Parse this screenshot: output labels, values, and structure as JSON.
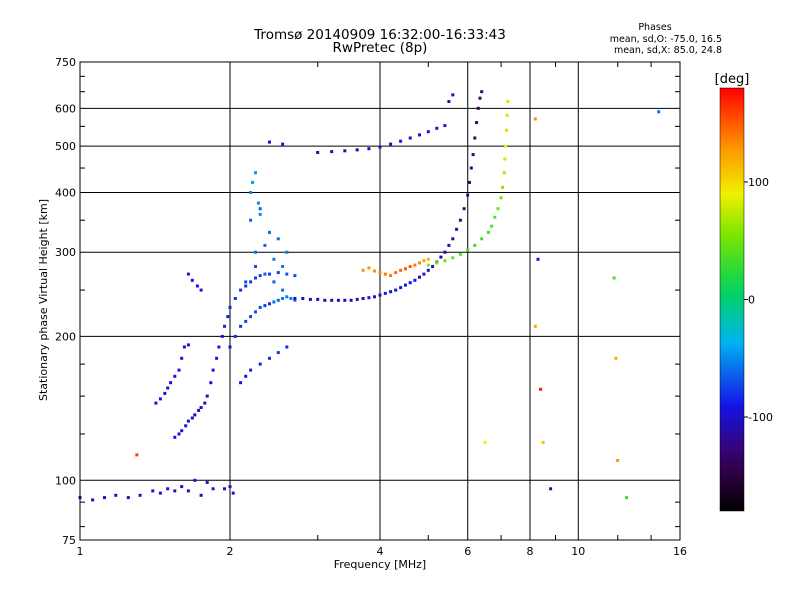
{
  "chart_data": {
    "type": "scatter",
    "title": "Tromsø 20140909 16:32:00-16:33:43",
    "subtitle": "RwPretec (8p)",
    "xlabel": "Frequency [MHz]",
    "ylabel": "Stationary phase Virtual Height [km]",
    "x_scale": "log",
    "y_scale": "log",
    "xlim": [
      1,
      16
    ],
    "ylim": [
      75,
      750
    ],
    "x_ticks": [
      1,
      2,
      4,
      6,
      8,
      10,
      16
    ],
    "y_ticks": [
      75,
      100,
      200,
      300,
      400,
      500,
      600,
      750
    ],
    "grid": true,
    "stats": {
      "title": "Phases",
      "line_o": "mean, sd,O:  -75.0, 16.5",
      "line_x": "mean, sd,X:   85.0, 24.8"
    },
    "colorbar": {
      "label": "[deg]",
      "range": [
        -180,
        180
      ],
      "ticks": [
        100,
        0,
        -100
      ],
      "position": "right"
    },
    "series": [
      {
        "x": [
          1.0,
          1.06,
          1.12,
          1.18,
          1.25,
          1.32,
          1.4,
          1.45,
          1.5,
          1.55,
          1.6,
          1.65,
          1.7,
          1.75,
          1.8,
          1.85,
          1.95,
          2.0,
          2.03
        ],
        "y": [
          92,
          91,
          92,
          93,
          92,
          93,
          95,
          94,
          96,
          95,
          97,
          95,
          100,
          93,
          99,
          96,
          96,
          97,
          94
        ],
        "phase": [
          -100,
          -100,
          -100,
          -100,
          -100,
          -100,
          -100,
          -100,
          -100,
          -100,
          -100,
          -105,
          -100,
          -110,
          -100,
          -100,
          -100,
          -100,
          -100
        ]
      },
      {
        "x": [
          1.55,
          1.58,
          1.6,
          1.63,
          1.65,
          1.68,
          1.7,
          1.73,
          1.75,
          1.78,
          1.8,
          1.83,
          1.85,
          1.88,
          1.9,
          1.93,
          1.95,
          1.98,
          2.0,
          2.05,
          2.1,
          2.15,
          2.2,
          2.25,
          2.3,
          2.4,
          2.5,
          2.6,
          2.7
        ],
        "y": [
          123,
          125,
          127,
          130,
          133,
          135,
          137,
          140,
          142,
          145,
          150,
          160,
          170,
          180,
          190,
          200,
          210,
          220,
          230,
          240,
          250,
          255,
          260,
          265,
          268,
          270,
          272,
          270,
          268
        ],
        "phase": [
          -90,
          -90,
          -95,
          -95,
          -95,
          -100,
          -100,
          -100,
          -100,
          -100,
          -100,
          -95,
          -95,
          -90,
          -90,
          -90,
          -85,
          -85,
          -85,
          -80,
          -80,
          -80,
          -75,
          -75,
          -75,
          -75,
          -75,
          -70,
          -70
        ]
      },
      {
        "x": [
          1.42,
          1.45,
          1.48,
          1.5,
          1.52,
          1.55,
          1.58,
          1.6,
          1.62,
          1.65
        ],
        "y": [
          145,
          148,
          152,
          156,
          160,
          165,
          170,
          180,
          190,
          192
        ],
        "phase": [
          -95,
          -95,
          -95,
          -95,
          -95,
          -95,
          -95,
          -95,
          -95,
          -95
        ]
      },
      {
        "x": [
          1.65,
          1.68,
          1.72,
          1.75
        ],
        "y": [
          270,
          262,
          255,
          250
        ],
        "phase": [
          -90,
          -90,
          -90,
          -90
        ]
      },
      {
        "x": [
          2.0,
          2.05,
          2.1,
          2.15,
          2.2,
          2.25,
          2.3,
          2.35,
          2.4,
          2.45,
          2.5,
          2.55,
          2.6,
          2.65,
          2.7,
          2.1,
          2.15,
          2.2,
          2.3,
          2.4,
          2.5,
          2.6,
          2.25,
          2.35,
          2.45,
          2.55,
          2.2,
          2.3,
          2.4,
          2.5,
          2.6,
          2.15,
          2.25,
          2.35,
          2.45,
          2.55
        ],
        "y": [
          190,
          200,
          210,
          215,
          220,
          225,
          230,
          232,
          234,
          236,
          238,
          240,
          242,
          240,
          238,
          160,
          165,
          170,
          175,
          180,
          185,
          190,
          300,
          310,
          290,
          280,
          350,
          370,
          330,
          320,
          300,
          260,
          280,
          270,
          260,
          250
        ],
        "phase": [
          -90,
          -80,
          -80,
          -75,
          -75,
          -70,
          -70,
          -75,
          -80,
          -60,
          -60,
          -55,
          -55,
          -55,
          -60,
          -90,
          -90,
          -85,
          -85,
          -80,
          -80,
          -80,
          -60,
          -60,
          -55,
          -55,
          -65,
          -65,
          -60,
          -60,
          -55,
          -70,
          -70,
          -65,
          -65,
          -60
        ]
      },
      {
        "x": [
          2.2,
          2.22,
          2.25,
          2.28,
          2.3
        ],
        "y": [
          400,
          420,
          440,
          380,
          360
        ],
        "phase": [
          -50,
          -45,
          -45,
          -50,
          -50
        ]
      },
      {
        "x": [
          2.7,
          2.8,
          2.9,
          3.0,
          3.1,
          3.2,
          3.3,
          3.4,
          3.5,
          3.6,
          3.7,
          3.8,
          3.9,
          4.0,
          4.1,
          4.2,
          4.3,
          4.4,
          4.5,
          4.6,
          4.7,
          4.8,
          4.9,
          5.0,
          5.1,
          5.2,
          5.3,
          5.4,
          5.5,
          5.6,
          5.7,
          5.8,
          5.9,
          6.0,
          6.05,
          6.1,
          6.15,
          6.2,
          6.25,
          6.3,
          6.35,
          6.4
        ],
        "y": [
          240,
          240,
          239,
          239,
          238,
          238,
          238,
          238,
          238,
          239,
          240,
          241,
          242,
          244,
          246,
          248,
          250,
          253,
          256,
          259,
          262,
          266,
          270,
          275,
          280,
          286,
          293,
          300,
          310,
          320,
          335,
          350,
          370,
          395,
          420,
          450,
          480,
          520,
          560,
          600,
          630,
          650
        ],
        "phase": [
          -100,
          -105,
          -105,
          -110,
          -110,
          -110,
          -110,
          -105,
          -105,
          -105,
          -105,
          -100,
          -100,
          -100,
          -95,
          -95,
          -95,
          -90,
          -90,
          -90,
          -90,
          -100,
          -100,
          -100,
          -105,
          -105,
          -110,
          -110,
          -110,
          -115,
          -115,
          -120,
          -120,
          -120,
          -125,
          -125,
          -125,
          -130,
          -130,
          -130,
          -130,
          -130
        ]
      },
      {
        "x": [
          3.7,
          3.8,
          3.9,
          4.0,
          4.1,
          4.2,
          4.3,
          4.4,
          4.5,
          4.6,
          4.7,
          4.8,
          4.9,
          5.0
        ],
        "y": [
          275,
          278,
          274,
          272,
          270,
          268,
          272,
          275,
          277,
          280,
          282,
          285,
          288,
          290
        ],
        "phase": [
          130,
          130,
          130,
          135,
          140,
          140,
          145,
          145,
          150,
          150,
          140,
          135,
          125,
          115
        ]
      },
      {
        "x": [
          5.0,
          5.2,
          5.4,
          5.6,
          5.8,
          6.0,
          6.2,
          6.4,
          6.6,
          6.7,
          6.8,
          6.9,
          7.0,
          7.05,
          7.1,
          7.12,
          7.15,
          7.18,
          7.2,
          7.22
        ],
        "y": [
          282,
          285,
          288,
          292,
          297,
          303,
          310,
          320,
          330,
          340,
          355,
          370,
          390,
          410,
          440,
          470,
          500,
          540,
          580,
          620
        ],
        "phase": [
          60,
          55,
          50,
          45,
          40,
          35,
          30,
          30,
          35,
          40,
          45,
          50,
          55,
          60,
          70,
          80,
          90,
          100,
          100,
          100
        ]
      },
      {
        "x": [
          3.0,
          3.2,
          3.4,
          3.6,
          3.8,
          4.0,
          4.2,
          4.4,
          4.6,
          4.8,
          5.0,
          5.2,
          5.4
        ],
        "y": [
          485,
          487,
          489,
          491,
          494,
          498,
          505,
          512,
          520,
          528,
          536,
          545,
          552
        ],
        "phase": [
          -110,
          -115,
          -115,
          -110,
          -110,
          -105,
          -105,
          -100,
          -100,
          -95,
          -95,
          -95,
          -90
        ]
      },
      {
        "x": [
          2.4,
          2.55,
          5.5,
          5.6,
          8.2,
          8.3,
          8.4,
          8.2,
          8.5,
          8.8,
          11.8,
          11.9,
          12.0,
          12.5,
          14.5,
          6.5,
          1.3
        ],
        "y": [
          510,
          505,
          620,
          640,
          570,
          290,
          155,
          210,
          120,
          96,
          265,
          180,
          110,
          92,
          590,
          120,
          113
        ],
        "phase": [
          -100,
          -90,
          -100,
          -100,
          130,
          -90,
          170,
          120,
          110,
          -110,
          40,
          120,
          130,
          30,
          -60,
          90,
          160
        ]
      }
    ]
  }
}
